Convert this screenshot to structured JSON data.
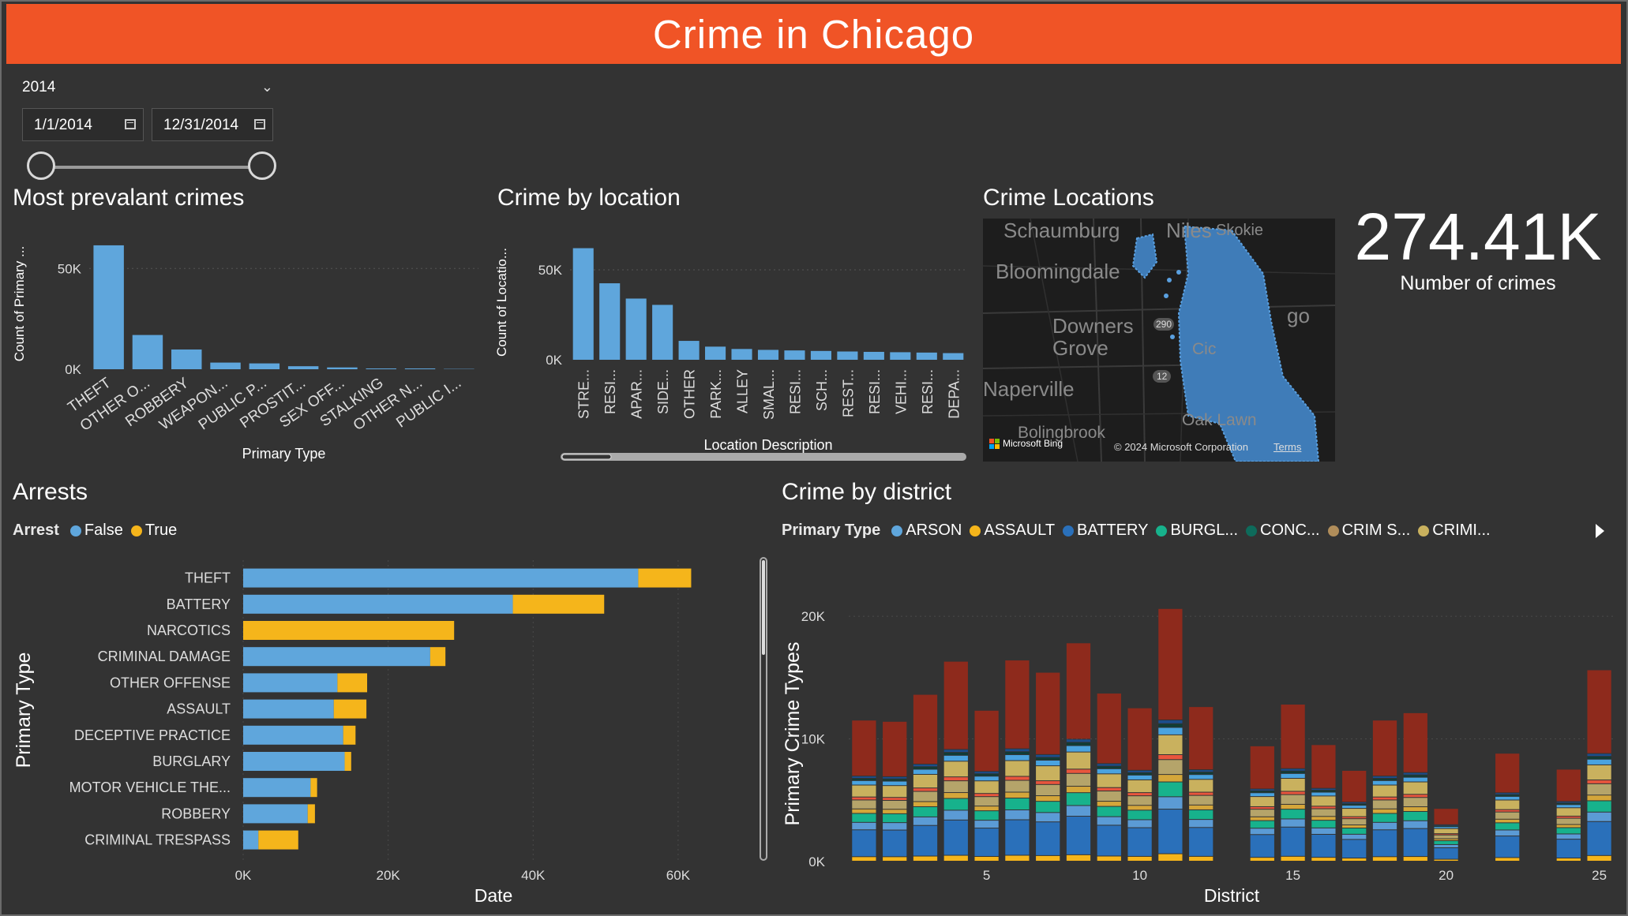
{
  "title": "Crime in Chicago",
  "filters": {
    "year": "2014",
    "start_date": "1/1/2014",
    "end_date": "12/31/2014",
    "slider": {
      "start": 0,
      "end": 1
    }
  },
  "kpi": {
    "value": "274.41K",
    "label": "Number of crimes"
  },
  "map": {
    "title": "Crime Locations",
    "places": [
      "Schaumburg",
      "Niles",
      "Skokie",
      "Bloomingdale",
      "Downers Grove",
      "Naperville",
      "Bolingbrook",
      "Oak Lawn",
      "Cic",
      "go",
      "290",
      "12"
    ],
    "brand": "Microsoft Bing",
    "copyright": "© 2024 Microsoft Corporation",
    "terms": "Terms"
  },
  "colors": {
    "accent": "#f05426",
    "false": "#5fa6dc",
    "true": "#f5b51b",
    "bar": "#5fa6dc"
  },
  "chart_data": [
    {
      "id": "prevalent",
      "type": "bar",
      "title": "Most prevalant crimes",
      "xlabel": "Primary Type",
      "ylabel": "Count of Primary ...",
      "categories": [
        "THEFT",
        "OTHER O...",
        "ROBBERY",
        "WEAPON...",
        "PUBLIC P...",
        "PROSTIT...",
        "SEX OFF...",
        "STALKING",
        "OTHER N...",
        "PUBLIC I..."
      ],
      "values": [
        61500,
        17000,
        9800,
        3300,
        2900,
        1500,
        900,
        400,
        400,
        150
      ],
      "ylim": [
        0,
        65000
      ],
      "yticks": [
        {
          "v": 0,
          "label": "0K"
        },
        {
          "v": 50000,
          "label": "50K"
        }
      ]
    },
    {
      "id": "location",
      "type": "bar",
      "title": "Crime by location",
      "xlabel": "Location Description",
      "ylabel": "Count of Locatio...",
      "categories": [
        "STRE...",
        "RESI...",
        "APAR...",
        "SIDE...",
        "OTHER",
        "PARK...",
        "ALLEY",
        "SMAL...",
        "RESI...",
        "SCH...",
        "REST...",
        "RESI...",
        "VEHI...",
        "RESI...",
        "DEPA..."
      ],
      "values": [
        62000,
        42500,
        34000,
        30500,
        10500,
        7300,
        6000,
        5500,
        5200,
        4900,
        4600,
        4400,
        4200,
        4000,
        3700
      ],
      "ylim": [
        0,
        64000
      ],
      "yticks": [
        {
          "v": 0,
          "label": "0K"
        },
        {
          "v": 50000,
          "label": "50K"
        }
      ]
    },
    {
      "id": "arrests",
      "type": "bar",
      "orientation": "horizontal",
      "stacked": true,
      "title": "Arrests",
      "legend_title": "Arrest",
      "xlabel": "Date",
      "ylabel": "Primary Type",
      "categories": [
        "THEFT",
        "BATTERY",
        "NARCOTICS",
        "CRIMINAL DAMAGE",
        "OTHER OFFENSE",
        "ASSAULT",
        "DECEPTIVE PRACTICE",
        "BURGLARY",
        "MOTOR VEHICLE THE...",
        "ROBBERY",
        "CRIMINAL TRESPASS"
      ],
      "series": [
        {
          "name": "False",
          "color": "#5fa6dc",
          "values": [
            54500,
            37200,
            0,
            25800,
            13000,
            12500,
            13800,
            14000,
            9300,
            8900,
            2100
          ]
        },
        {
          "name": "True",
          "color": "#f5b51b",
          "values": [
            7300,
            12600,
            29100,
            2100,
            4100,
            4500,
            1700,
            900,
            900,
            1000,
            5500
          ]
        }
      ],
      "xlim": [
        0,
        66000
      ],
      "xticks": [
        {
          "v": 0,
          "label": "0K"
        },
        {
          "v": 20000,
          "label": "20K"
        },
        {
          "v": 40000,
          "label": "40K"
        },
        {
          "v": 60000,
          "label": "60K"
        }
      ]
    },
    {
      "id": "district",
      "type": "bar",
      "stacked": true,
      "title": "Crime by district",
      "legend_title": "Primary Type",
      "xlabel": "District",
      "ylabel": "Primary Crime Types",
      "legend": [
        {
          "name": "ARSON",
          "color": "#5fa6dc"
        },
        {
          "name": "ASSAULT",
          "color": "#f5b51b"
        },
        {
          "name": "BATTERY",
          "color": "#2a70ba"
        },
        {
          "name": "BURGL...",
          "color": "#17b28c"
        },
        {
          "name": "CONC...",
          "color": "#0e6b5b"
        },
        {
          "name": "CRIM S...",
          "color": "#b08d5a"
        },
        {
          "name": "CRIMI...",
          "color": "#c9b15e"
        }
      ],
      "layer_colors": [
        "#f5b51b",
        "#2a70ba",
        "#5b9bd5",
        "#17b28c",
        "#d4a63a",
        "#b5a46a",
        "#e8553d",
        "#c9b15e",
        "#4aa3df",
        "#0f3d36",
        "#1b4e8c",
        "#8e2a1c"
      ],
      "districts": [
        1,
        2,
        3,
        4,
        5,
        6,
        7,
        8,
        9,
        10,
        11,
        12,
        14,
        15,
        16,
        17,
        18,
        19,
        20,
        22,
        24,
        25
      ],
      "totals": [
        11500,
        11400,
        13600,
        16300,
        12300,
        16400,
        15400,
        17800,
        13700,
        12500,
        20600,
        12600,
        9400,
        12800,
        9500,
        7400,
        11500,
        12100,
        4300,
        8800,
        7500,
        15600
      ],
      "xlim": [
        0.5,
        25.5
      ],
      "ylim": [
        0,
        22000
      ],
      "xticks": [
        5,
        10,
        15,
        20,
        25
      ],
      "yticks": [
        {
          "v": 0,
          "label": "0K"
        },
        {
          "v": 10000,
          "label": "10K"
        },
        {
          "v": 20000,
          "label": "20K"
        }
      ]
    }
  ]
}
